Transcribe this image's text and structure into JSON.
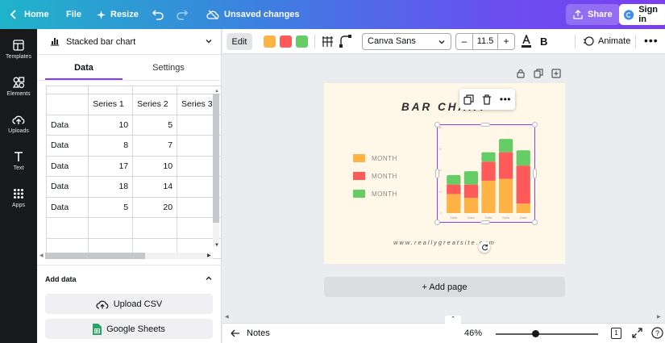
{
  "topbar": {
    "home": "Home",
    "file": "File",
    "resize": "Resize",
    "status": "Unsaved changes",
    "share": "Share",
    "signin": "Sign in"
  },
  "rail": [
    {
      "label": "Templates",
      "icon": "templates-icon"
    },
    {
      "label": "Elements",
      "icon": "elements-icon"
    },
    {
      "label": "Uploads",
      "icon": "uploads-icon"
    },
    {
      "label": "Text",
      "icon": "text-icon"
    },
    {
      "label": "Apps",
      "icon": "apps-icon"
    }
  ],
  "panel": {
    "chart_type": "Stacked bar chart",
    "tabs": {
      "data": "Data",
      "settings": "Settings"
    },
    "table": {
      "headers": [
        "",
        "Series 1",
        "Series 2",
        "Series 3"
      ],
      "rows": [
        [
          "Data",
          "10",
          "5",
          ""
        ],
        [
          "Data",
          "8",
          "7",
          ""
        ],
        [
          "Data",
          "17",
          "10",
          ""
        ],
        [
          "Data",
          "18",
          "14",
          ""
        ],
        [
          "Data",
          "5",
          "20",
          ""
        ],
        [
          "",
          "",
          "",
          ""
        ],
        [
          "",
          "",
          "",
          ""
        ]
      ]
    },
    "add_data": "Add data",
    "upload_csv": "Upload CSV",
    "google_sheets": "Google Sheets"
  },
  "toolbar": {
    "edit": "Edit",
    "swatches": [
      "#ffb347",
      "#ff5a5a",
      "#66cc66"
    ],
    "font": "Canva Sans",
    "size_minus": "–",
    "font_size": "11.5",
    "size_plus": "+",
    "bold": "B",
    "animate": "Animate",
    "more": "•••"
  },
  "design": {
    "title": "BAR CHART",
    "legend": [
      {
        "label": "MONTH",
        "color": "#ffb347"
      },
      {
        "label": "MONTH",
        "color": "#ff5a5a"
      },
      {
        "label": "MONTH",
        "color": "#66cc66"
      }
    ],
    "website": "www.reallygreatsite.com"
  },
  "chart_data": {
    "type": "bar",
    "stacked": true,
    "categories": [
      "Data",
      "Data",
      "Data",
      "Data",
      "Data"
    ],
    "series": [
      {
        "values": [
          10,
          8,
          17,
          18,
          5
        ],
        "color": "#ffb347"
      },
      {
        "values": [
          5,
          7,
          10,
          14,
          20
        ],
        "color": "#ff5a5a"
      },
      {
        "values": [
          5,
          7,
          5,
          7,
          8
        ],
        "color": "#66cc66"
      }
    ],
    "ylim": [
      0,
      45
    ],
    "yticks": [
      "40",
      "30",
      "20",
      "10",
      "0"
    ],
    "title": "BAR CHART"
  },
  "canvas": {
    "add_page": "+ Add page"
  },
  "bottombar": {
    "notes": "Notes",
    "zoom": "46%",
    "page_count": "1"
  }
}
